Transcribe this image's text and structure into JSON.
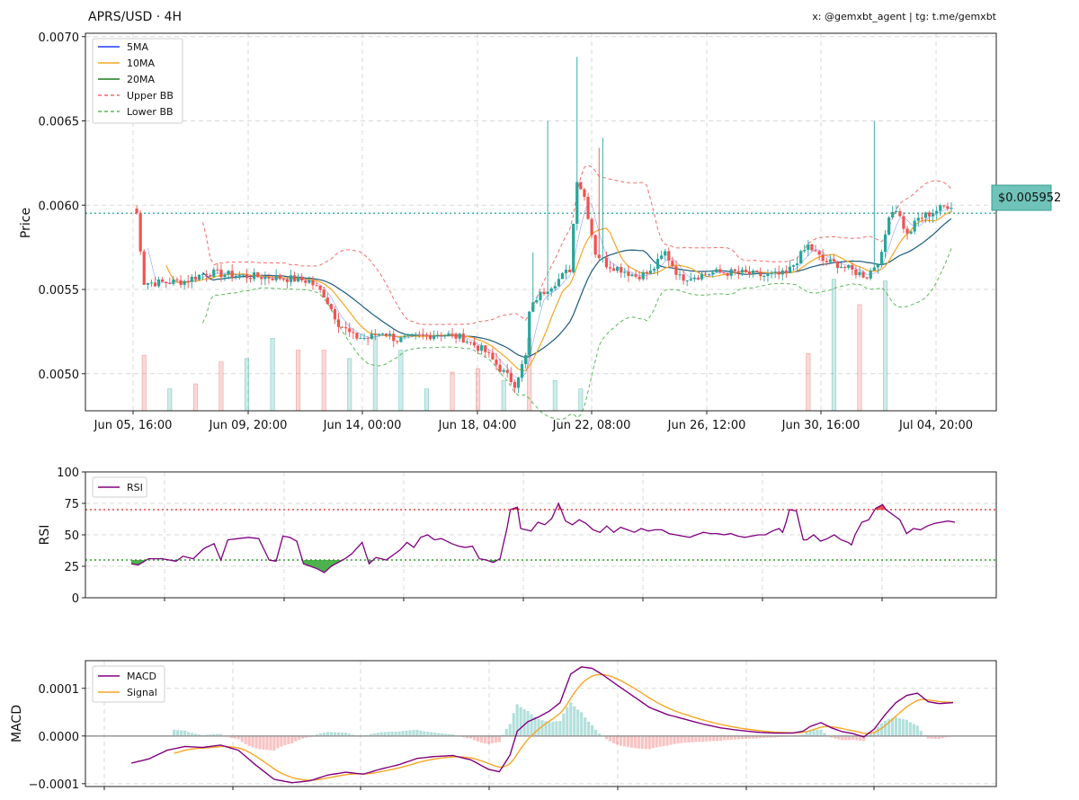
{
  "header": {
    "title": "APRS/USD · 4H",
    "credit": "x: @gemxbt_agent | tg: t.me/gemxbt"
  },
  "price_panel": {
    "ylabel": "Price",
    "yticks": [
      "0.0050",
      "0.0055",
      "0.0060",
      "0.0065",
      "0.0070"
    ],
    "xticks": [
      "Jun 05, 16:00",
      "Jun 09, 20:00",
      "Jun 14, 00:00",
      "Jun 18, 04:00",
      "Jun 22, 08:00",
      "Jun 26, 12:00",
      "Jun 30, 16:00",
      "Jul 04, 20:00"
    ],
    "current_price_label": "$0.005952",
    "legend": [
      "5MA",
      "10MA",
      "20MA",
      "Upper BB",
      "Lower BB"
    ]
  },
  "rsi_panel": {
    "ylabel": "RSI",
    "yticks": [
      "0",
      "25",
      "50",
      "75",
      "100"
    ],
    "legend": [
      "RSI"
    ]
  },
  "macd_panel": {
    "ylabel": "MACD",
    "yticks": [
      "−0.0001",
      "0.0000",
      "0.0001"
    ],
    "legend": [
      "MACD",
      "Signal"
    ]
  },
  "colors": {
    "up": "#26a69a",
    "down": "#ef5350",
    "ma5": "#1f3cff",
    "ma10": "#f5a623",
    "ma20": "#1a7a1a",
    "upper_bb": "#f26b6b",
    "lower_bb": "#5cb85c",
    "rsi": "#800080",
    "signal": "#f5a623",
    "current": "#5ec4b6"
  },
  "chart_data": [
    {
      "type": "candlestick",
      "title": "APRS/USD · 4H",
      "ylabel": "Price",
      "ylim": [
        0.00478,
        0.00702
      ],
      "current_price": 0.005952,
      "x_ticks": [
        "Jun 05, 16:00",
        "Jun 09, 20:00",
        "Jun 14, 00:00",
        "Jun 18, 04:00",
        "Jun 22, 08:00",
        "Jun 26, 12:00",
        "Jun 30, 16:00",
        "Jul 04, 20:00"
      ],
      "close_anchors": [
        [
          0,
          0.00598
        ],
        [
          1,
          0.00595
        ],
        [
          3,
          0.00554
        ],
        [
          8,
          0.00554
        ],
        [
          14,
          0.00555
        ],
        [
          20,
          0.0056
        ],
        [
          30,
          0.00558
        ],
        [
          40,
          0.00557
        ],
        [
          48,
          0.00555
        ],
        [
          52,
          0.00547
        ],
        [
          56,
          0.0053
        ],
        [
          60,
          0.00522
        ],
        [
          64,
          0.00521
        ],
        [
          68,
          0.00525
        ],
        [
          72,
          0.0052
        ],
        [
          78,
          0.00522
        ],
        [
          84,
          0.00524
        ],
        [
          90,
          0.00521
        ],
        [
          96,
          0.00513
        ],
        [
          100,
          0.00503
        ],
        [
          104,
          0.00494
        ],
        [
          107,
          0.0051
        ],
        [
          108,
          0.00536
        ],
        [
          110,
          0.00545
        ],
        [
          113,
          0.00551
        ],
        [
          116,
          0.00556
        ],
        [
          119,
          0.00562
        ],
        [
          121,
          0.00616
        ],
        [
          123,
          0.00605
        ],
        [
          126,
          0.00572
        ],
        [
          129,
          0.00565
        ],
        [
          133,
          0.00562
        ],
        [
          137,
          0.00558
        ],
        [
          141,
          0.0056
        ],
        [
          145,
          0.00572
        ],
        [
          149,
          0.00557
        ],
        [
          153,
          0.00558
        ],
        [
          158,
          0.0056
        ],
        [
          165,
          0.0056
        ],
        [
          172,
          0.00558
        ],
        [
          178,
          0.00559
        ],
        [
          184,
          0.00576
        ],
        [
          188,
          0.00567
        ],
        [
          192,
          0.00565
        ],
        [
          196,
          0.00561
        ],
        [
          200,
          0.00558
        ],
        [
          204,
          0.0057
        ],
        [
          206,
          0.00595
        ],
        [
          208,
          0.00598
        ],
        [
          211,
          0.00582
        ],
        [
          214,
          0.00592
        ],
        [
          218,
          0.00596
        ],
        [
          222,
          0.006
        ]
      ],
      "wick_spikes": [
        [
          113,
          0.0065
        ],
        [
          121,
          0.00688
        ],
        [
          127,
          0.00634
        ],
        [
          128,
          0.0064
        ],
        [
          202,
          0.0065
        ],
        [
          109,
          0.00572
        ]
      ],
      "volume_bars": [
        [
          3,
          "down",
          0.00511
        ],
        [
          10,
          "up",
          0.00491
        ],
        [
          17,
          "down",
          0.00494
        ],
        [
          24,
          "down",
          0.00507
        ],
        [
          31,
          "up",
          0.00509
        ],
        [
          38,
          "up",
          0.00521
        ],
        [
          45,
          "down",
          0.00514
        ],
        [
          52,
          "down",
          0.00514
        ],
        [
          59,
          "up",
          0.00509
        ],
        [
          66,
          "up",
          0.00522
        ],
        [
          73,
          "up",
          0.00514
        ],
        [
          80,
          "up",
          0.00491
        ],
        [
          87,
          "down",
          0.00501
        ],
        [
          94,
          "down",
          0.00503
        ],
        [
          101,
          "up",
          0.00496
        ],
        [
          108,
          "down",
          0.00521
        ],
        [
          115,
          "up",
          0.00496
        ],
        [
          122,
          "up",
          0.00491
        ],
        [
          135,
          "down",
          0.00465
        ],
        [
          142,
          "up",
          0.00472
        ],
        [
          149,
          "down",
          0.0047
        ],
        [
          156,
          "up",
          0.0047
        ],
        [
          163,
          "down",
          0.00468
        ],
        [
          170,
          "up",
          0.00473
        ],
        [
          177,
          "down",
          0.0047
        ],
        [
          184,
          "down",
          0.00512
        ],
        [
          191,
          "up",
          0.00556
        ],
        [
          198,
          "down",
          0.00541
        ],
        [
          205,
          "up",
          0.00555
        ]
      ]
    },
    {
      "type": "line",
      "ylabel": "RSI",
      "ylim": [
        0,
        100
      ],
      "overbought": 70,
      "oversold": 30,
      "rsi_anchors": [
        [
          0,
          27
        ],
        [
          2,
          26
        ],
        [
          5,
          31
        ],
        [
          9,
          31
        ],
        [
          13,
          29
        ],
        [
          15,
          33
        ],
        [
          18,
          31
        ],
        [
          21,
          39
        ],
        [
          24,
          43
        ],
        [
          26,
          30
        ],
        [
          28,
          46
        ],
        [
          31,
          47
        ],
        [
          34,
          48
        ],
        [
          37,
          47
        ],
        [
          40,
          30
        ],
        [
          42,
          29
        ],
        [
          44,
          49
        ],
        [
          46,
          48
        ],
        [
          48,
          45
        ],
        [
          50,
          27
        ],
        [
          54,
          23
        ],
        [
          56,
          20
        ],
        [
          58,
          25
        ],
        [
          60,
          28
        ],
        [
          62,
          31
        ],
        [
          64,
          35
        ],
        [
          67,
          44
        ],
        [
          69,
          27
        ],
        [
          71,
          32
        ],
        [
          74,
          30
        ],
        [
          76,
          34
        ],
        [
          78,
          38
        ],
        [
          80,
          44
        ],
        [
          82,
          40
        ],
        [
          84,
          48
        ],
        [
          86,
          50
        ],
        [
          88,
          46
        ],
        [
          90,
          47
        ],
        [
          93,
          43
        ],
        [
          95,
          41
        ],
        [
          97,
          40
        ],
        [
          99,
          41
        ],
        [
          101,
          31
        ],
        [
          103,
          30
        ],
        [
          105,
          28
        ],
        [
          107,
          31
        ],
        [
          109,
          55
        ],
        [
          110,
          70
        ],
        [
          112,
          72
        ],
        [
          113,
          55
        ],
        [
          116,
          53
        ],
        [
          118,
          60
        ],
        [
          120,
          58
        ],
        [
          122,
          63
        ],
        [
          124,
          75
        ],
        [
          126,
          61
        ],
        [
          128,
          58
        ],
        [
          130,
          62
        ],
        [
          132,
          59
        ],
        [
          134,
          54
        ],
        [
          136,
          52
        ],
        [
          138,
          57
        ],
        [
          140,
          52
        ],
        [
          142,
          56
        ],
        [
          144,
          54
        ],
        [
          146,
          52
        ],
        [
          148,
          55
        ],
        [
          150,
          53
        ],
        [
          152,
          54
        ],
        [
          154,
          54
        ],
        [
          156,
          51
        ],
        [
          158,
          50
        ],
        [
          160,
          49
        ],
        [
          162,
          48
        ],
        [
          164,
          50
        ],
        [
          166,
          52
        ],
        [
          168,
          51
        ],
        [
          170,
          51
        ],
        [
          172,
          50
        ],
        [
          174,
          51
        ],
        [
          176,
          49
        ],
        [
          178,
          48
        ],
        [
          180,
          49
        ],
        [
          182,
          50
        ],
        [
          184,
          50
        ],
        [
          186,
          53
        ],
        [
          188,
          55
        ],
        [
          189,
          52
        ],
        [
          190,
          60
        ],
        [
          191,
          70
        ],
        [
          193,
          69
        ],
        [
          195,
          46
        ],
        [
          196,
          46
        ],
        [
          198,
          50
        ],
        [
          200,
          45
        ],
        [
          202,
          47
        ],
        [
          204,
          50
        ],
        [
          206,
          46
        ],
        [
          208,
          44
        ],
        [
          209,
          42
        ],
        [
          210,
          50
        ],
        [
          212,
          60
        ],
        [
          214,
          62
        ],
        [
          216,
          71
        ],
        [
          218,
          74
        ],
        [
          219,
          70
        ],
        [
          221,
          66
        ],
        [
          223,
          62
        ],
        [
          225,
          51
        ],
        [
          227,
          55
        ],
        [
          229,
          54
        ],
        [
          231,
          57
        ],
        [
          233,
          59
        ],
        [
          235,
          60
        ],
        [
          237,
          61
        ],
        [
          239,
          60
        ]
      ]
    },
    {
      "type": "line",
      "ylabel": "MACD",
      "ylim": [
        -0.000106,
        0.000158
      ],
      "series_names": [
        "MACD",
        "Signal"
      ],
      "macd_anchors": [
        [
          0,
          -5.7e-05
        ],
        [
          5,
          -4.8e-05
        ],
        [
          10,
          -3e-05
        ],
        [
          15,
          -2.2e-05
        ],
        [
          20,
          -2.4e-05
        ],
        [
          25,
          -1.9e-05
        ],
        [
          30,
          -3e-05
        ],
        [
          35,
          -6.2e-05
        ],
        [
          40,
          -9.1e-05
        ],
        [
          45,
          -9.8e-05
        ],
        [
          50,
          -9.4e-05
        ],
        [
          55,
          -8.2e-05
        ],
        [
          60,
          -7.6e-05
        ],
        [
          65,
          -8e-05
        ],
        [
          70,
          -6.9e-05
        ],
        [
          75,
          -6e-05
        ],
        [
          80,
          -4.7e-05
        ],
        [
          85,
          -4.3e-05
        ],
        [
          90,
          -4.1e-05
        ],
        [
          95,
          -5e-05
        ],
        [
          100,
          -7e-05
        ],
        [
          103,
          -7.5e-05
        ],
        [
          106,
          -4e-05
        ],
        [
          108,
          1e-05
        ],
        [
          111,
          3e-05
        ],
        [
          114,
          4e-05
        ],
        [
          117,
          5.2e-05
        ],
        [
          120,
          7e-05
        ],
        [
          123,
          0.00013
        ],
        [
          126,
          0.000145
        ],
        [
          129,
          0.000142
        ],
        [
          132,
          0.000128
        ],
        [
          135,
          0.000112
        ],
        [
          140,
          8.6e-05
        ],
        [
          145,
          6e-05
        ],
        [
          150,
          4.5e-05
        ],
        [
          155,
          3.5e-05
        ],
        [
          160,
          2.5e-05
        ],
        [
          165,
          1.7e-05
        ],
        [
          170,
          1.2e-05
        ],
        [
          175,
          8e-06
        ],
        [
          180,
          6e-06
        ],
        [
          185,
          6e-06
        ],
        [
          188,
          1e-05
        ],
        [
          190,
          2e-05
        ],
        [
          193,
          2.8e-05
        ],
        [
          196,
          1.7e-05
        ],
        [
          199,
          9e-06
        ],
        [
          202,
          5e-06
        ],
        [
          205,
          -2e-06
        ],
        [
          208,
          1.5e-05
        ],
        [
          211,
          4.5e-05
        ],
        [
          214,
          7e-05
        ],
        [
          217,
          8.5e-05
        ],
        [
          220,
          9e-05
        ],
        [
          223,
          7.2e-05
        ],
        [
          226,
          6.8e-05
        ],
        [
          230,
          7e-05
        ]
      ]
    }
  ]
}
